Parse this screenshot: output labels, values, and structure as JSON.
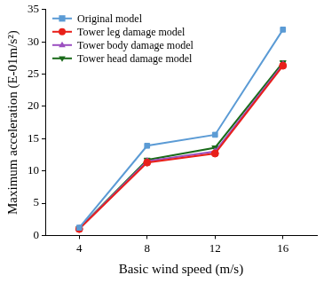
{
  "chart_data": {
    "type": "line",
    "x_label": "Basic wind speed (m/s)",
    "y_label": "Maximum acceleration (E-01m/s²)",
    "categories": [
      "4",
      "8",
      "12",
      "16"
    ],
    "series": [
      {
        "name": "Original model",
        "color": "#5b9bd5",
        "marker": "square",
        "values": [
          1.2,
          13.9,
          15.6,
          31.9
        ]
      },
      {
        "name": "Tower leg damage model",
        "color": "#e8201a",
        "marker": "circle",
        "values": [
          1.0,
          11.3,
          12.7,
          26.3
        ]
      },
      {
        "name": "Tower body damage model",
        "color": "#9b4fc0",
        "marker": "triangle",
        "values": [
          1.05,
          11.5,
          13.0,
          26.5
        ]
      },
      {
        "name": "Tower head damage model",
        "color": "#1a6b1a",
        "marker": "triangle_down",
        "values": [
          1.1,
          11.7,
          13.6,
          26.8
        ]
      }
    ],
    "ylim": [
      0,
      35
    ],
    "yticks": [
      0,
      5,
      10,
      15,
      20,
      25,
      30,
      35
    ],
    "grid": false,
    "legend": "upper left"
  }
}
